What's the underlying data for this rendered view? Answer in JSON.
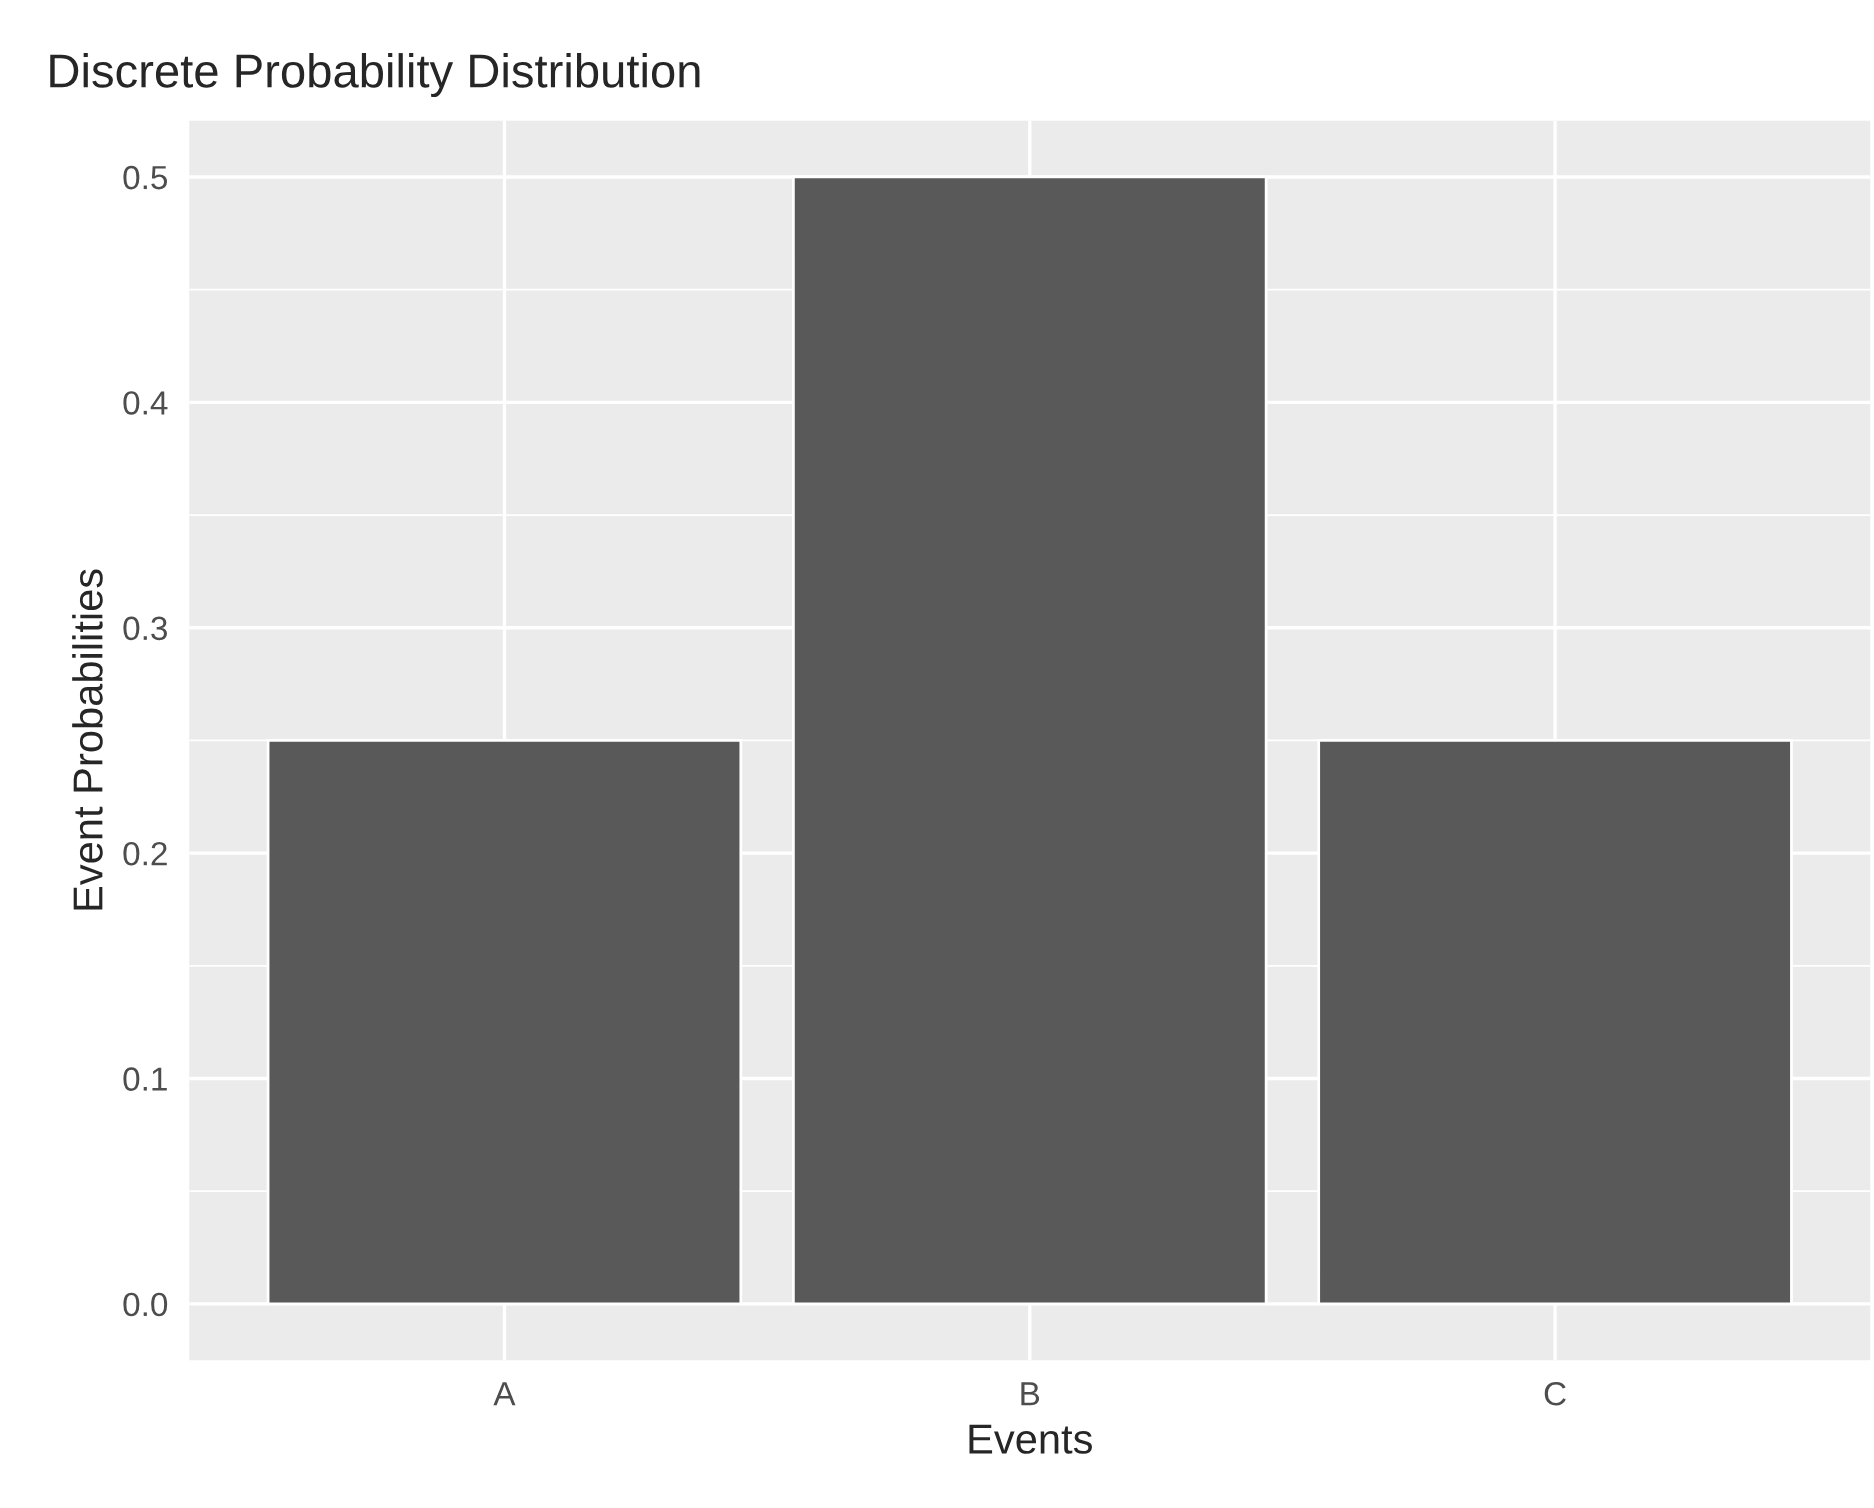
{
  "chart_data": {
    "type": "bar",
    "title": "Discrete Probability Distribution",
    "xlabel": "Events",
    "ylabel": "Event Probabilities",
    "categories": [
      "A",
      "B",
      "C"
    ],
    "values": [
      0.25,
      0.5,
      0.25
    ],
    "color": "#595959",
    "ylim": [
      -0.025,
      0.525
    ],
    "yticks": [
      {
        "value": 0,
        "label": "0.0"
      },
      0.1,
      0.2,
      0.3,
      0.4,
      0.5
    ],
    "grid": true
  }
}
